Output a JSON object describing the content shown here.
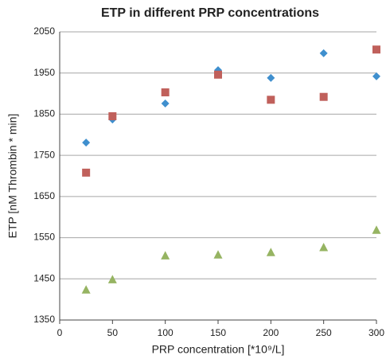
{
  "chart_data": {
    "type": "scatter",
    "title": "ETP in different PRP concentrations",
    "x_label": "PRP concentration [*10⁹/L]",
    "y_label": "ETP [nM Thrombin * min]",
    "x": [
      25,
      50,
      100,
      150,
      200,
      250,
      300
    ],
    "series": [
      {
        "color": "#3f8fce",
        "marker": "diamond",
        "values": [
          1781,
          1837,
          1876,
          1957,
          1938,
          1998,
          1942
        ]
      },
      {
        "color": "#c0605b",
        "marker": "square",
        "values": [
          1708,
          1845,
          1903,
          1946,
          1885,
          1892,
          2007
        ]
      },
      {
        "color": "#96b462",
        "marker": "triangle",
        "values": [
          1423,
          1448,
          1506,
          1508,
          1514,
          1526,
          1568
        ]
      }
    ],
    "xlim": [
      0,
      300
    ],
    "xticks": [
      0,
      50,
      100,
      150,
      200,
      250,
      300
    ],
    "ylim": [
      1350,
      2050
    ],
    "yticks": [
      1350,
      1450,
      1550,
      1650,
      1750,
      1850,
      1950,
      2050
    ],
    "grid": true
  }
}
